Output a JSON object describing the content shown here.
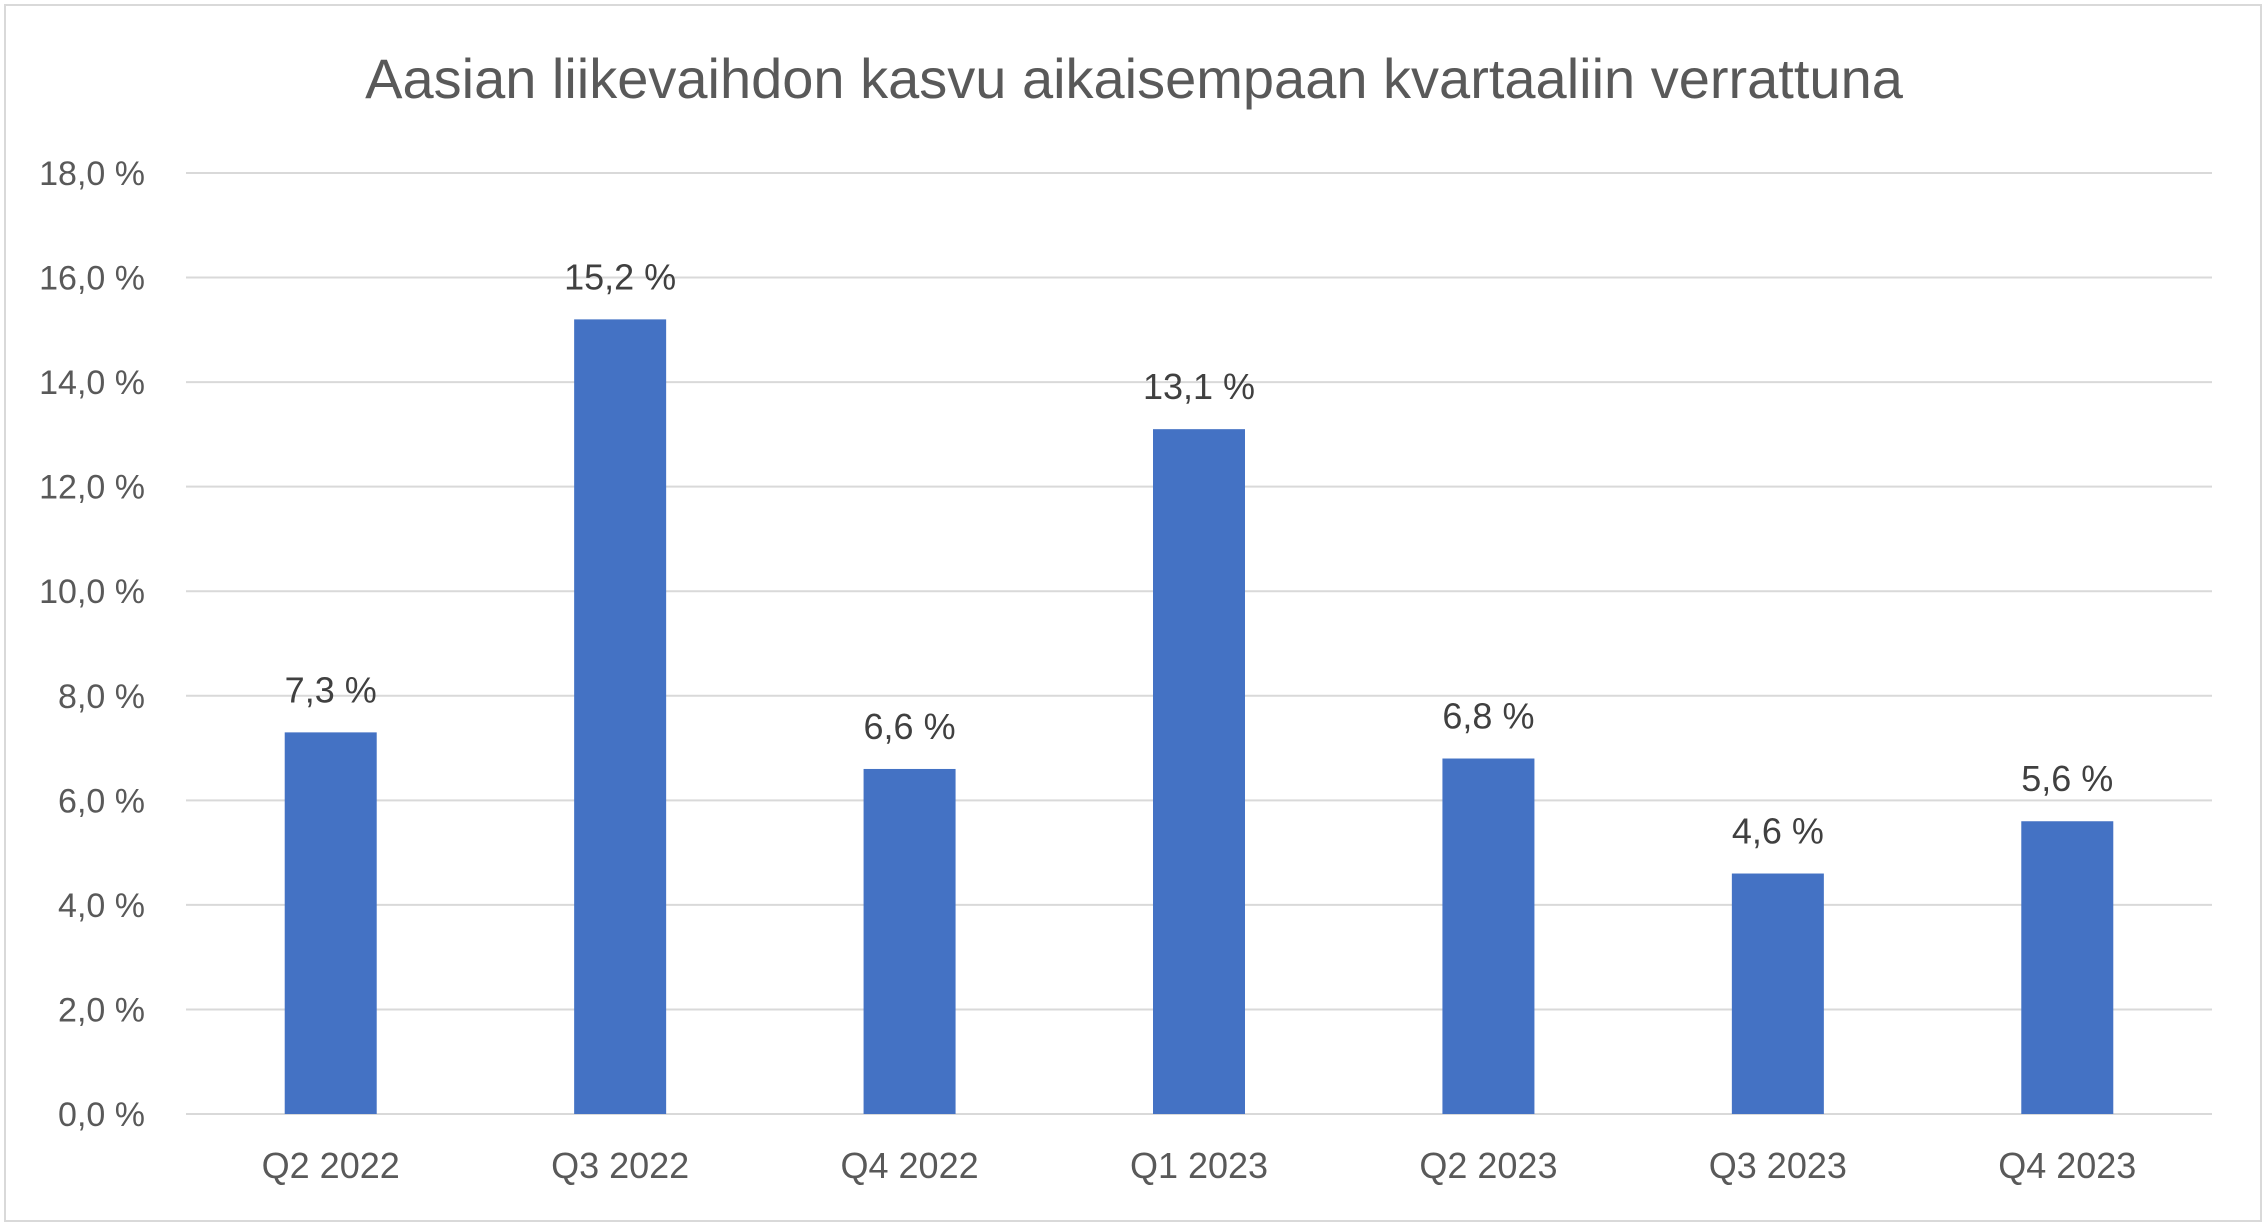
{
  "chart_data": {
    "type": "bar",
    "title": "Aasian liikevaihdon kasvu aikaisempaan kvartaaliin verrattuna",
    "categories": [
      "Q2 2022",
      "Q3 2022",
      "Q4 2022",
      "Q1 2023",
      "Q2 2023",
      "Q3 2023",
      "Q4 2023"
    ],
    "values": [
      7.3,
      15.2,
      6.6,
      13.1,
      6.8,
      4.6,
      5.6
    ],
    "data_labels": [
      "7,3 %",
      "15,2 %",
      "6,6 %",
      "13,1 %",
      "6,8 %",
      "4,6 %",
      "5,6 %"
    ],
    "y_ticks": [
      0,
      2,
      4,
      6,
      8,
      10,
      12,
      14,
      16,
      18
    ],
    "y_tick_labels": [
      "0,0 %",
      "2,0 %",
      "4,0 %",
      "6,0 %",
      "8,0 %",
      "10,0 %",
      "12,0 %",
      "14,0 %",
      "16,0 %",
      "18,0 %"
    ],
    "ylim": [
      0,
      18
    ],
    "xlabel": "",
    "ylabel": "",
    "grid": true,
    "legend": "none",
    "bar_color": "#4472c4"
  }
}
